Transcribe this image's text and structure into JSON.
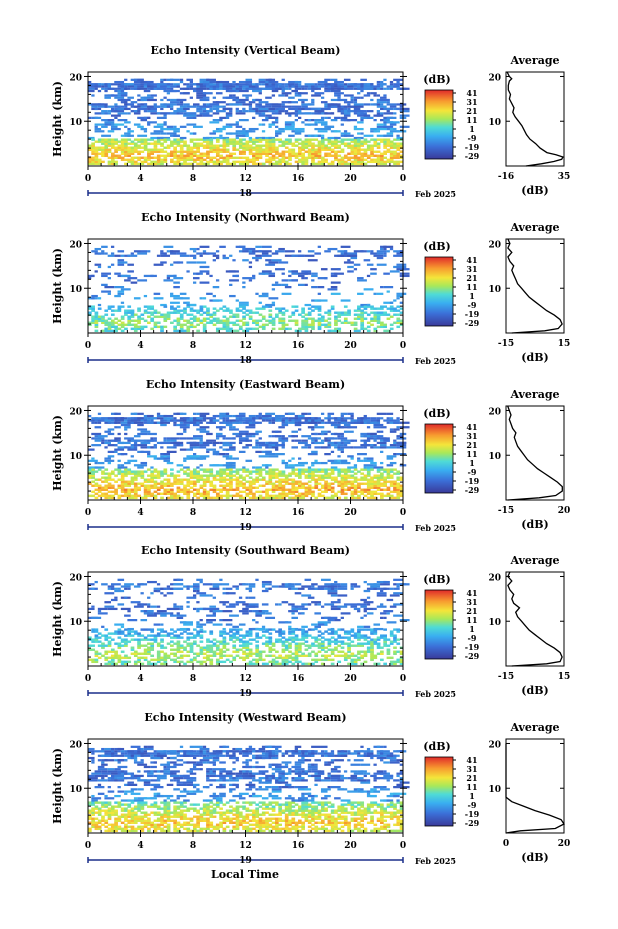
{
  "chart_data": {
    "type": "heatmap",
    "panels": [
      {
        "title": "Echo Intensity (Vertical Beam)",
        "ylabel": "Height (km)",
        "yticks": [
          "20",
          "10"
        ],
        "xticks": [
          "0",
          "4",
          "8",
          "12",
          "16",
          "20",
          "0"
        ],
        "day": "18",
        "month": "Feb 2025",
        "colorbar_title": "(dB)",
        "colorbar_ticks": [
          "41",
          "31",
          "21",
          "11",
          "1",
          "-9",
          "-19",
          "-29"
        ],
        "avg_title": "Average",
        "avg_yticks": [
          "20",
          "10"
        ],
        "avg_xticks": [
          "-16",
          "35"
        ],
        "avg_xlabel": "(dB)",
        "low_intensity": 25,
        "low_top_km": 6,
        "density": 0.65,
        "avg_profile": {
          "x": [
            1.5,
            15,
            26,
            33,
            34,
            28,
            20,
            14,
            10,
            5,
            2,
            0,
            -2,
            -5,
            -8,
            -10,
            -9,
            -11,
            -13,
            -12,
            -14,
            -14,
            -13,
            -11,
            -13,
            -15
          ],
          "y": [
            0,
            0.5,
            1,
            1.5,
            2,
            2.5,
            3,
            4,
            5,
            6,
            7,
            8,
            9,
            10,
            11,
            12,
            13,
            14,
            15,
            16,
            17,
            18,
            19,
            19.5,
            20,
            21
          ]
        }
      },
      {
        "title": "Echo Intensity (Northward Beam)",
        "ylabel": "Height (km)",
        "yticks": [
          "20",
          "10"
        ],
        "xticks": [
          "0",
          "4",
          "8",
          "12",
          "16",
          "20",
          "0"
        ],
        "day": "18",
        "month": "Feb 2025",
        "colorbar_title": "(dB)",
        "colorbar_ticks": [
          "41",
          "31",
          "21",
          "11",
          "1",
          "-9",
          "-19",
          "-29"
        ],
        "avg_title": "Average",
        "avg_yticks": [
          "20",
          "10"
        ],
        "avg_xticks": [
          "-15",
          "15"
        ],
        "avg_xlabel": "(dB)",
        "low_intensity": 10,
        "low_top_km": 6,
        "density": 0.25,
        "avg_profile": {
          "x": [
            -12,
            5,
            12,
            14,
            13,
            10,
            6,
            3,
            0,
            -3,
            -5,
            -7,
            -9,
            -10,
            -11,
            -12,
            -11,
            -13,
            -14,
            -12,
            -14,
            -13,
            -14
          ],
          "y": [
            0,
            0.5,
            1,
            2,
            3,
            4,
            5,
            6,
            7,
            8,
            9,
            10,
            11,
            12,
            13,
            14,
            15,
            16,
            17,
            18,
            19,
            20,
            21
          ]
        }
      },
      {
        "title": "Echo Intensity (Eastward Beam)",
        "ylabel": "Height (km)",
        "yticks": [
          "20",
          "10"
        ],
        "xticks": [
          "0",
          "4",
          "8",
          "12",
          "16",
          "20",
          "0"
        ],
        "day": "19",
        "month": "Feb 2025",
        "colorbar_title": "(dB)",
        "colorbar_ticks": [
          "41",
          "31",
          "21",
          "11",
          "1",
          "-9",
          "-19",
          "-29"
        ],
        "avg_title": "Average",
        "avg_yticks": [
          "20",
          "10"
        ],
        "avg_xticks": [
          "-15",
          "20"
        ],
        "avg_xlabel": "(dB)",
        "low_intensity": 27,
        "low_top_km": 7,
        "density": 0.55,
        "avg_profile": {
          "x": [
            -14,
            5,
            15,
            19,
            19,
            16,
            12,
            8,
            4,
            1,
            -2,
            -4,
            -6,
            -8,
            -9,
            -10,
            -9,
            -11,
            -12,
            -13,
            -12,
            -13,
            -14
          ],
          "y": [
            0,
            0.5,
            1,
            2,
            3,
            4,
            5,
            6,
            7,
            8,
            9,
            10,
            11,
            12,
            13,
            14,
            15,
            16,
            17,
            18,
            19,
            20,
            21
          ]
        }
      },
      {
        "title": "Echo Intensity (Southward Beam)",
        "ylabel": "Height (km)",
        "yticks": [
          "20",
          "10"
        ],
        "xticks": [
          "0",
          "4",
          "8",
          "12",
          "16",
          "20",
          "0"
        ],
        "day": "19",
        "month": "Feb 2025",
        "colorbar_title": "(dB)",
        "colorbar_ticks": [
          "41",
          "31",
          "21",
          "11",
          "1",
          "-9",
          "-19",
          "-29"
        ],
        "avg_title": "Average",
        "avg_yticks": [
          "20",
          "10"
        ],
        "avg_xticks": [
          "-15",
          "15"
        ],
        "avg_xlabel": "(dB)",
        "low_intensity": 14,
        "low_top_km": 8,
        "density": 0.3,
        "avg_profile": {
          "x": [
            -12,
            6,
            13,
            14,
            13,
            10,
            6,
            3,
            0,
            -3,
            -5,
            -7,
            -9,
            -10,
            -8,
            -11,
            -12,
            -11,
            -13,
            -14,
            -12,
            -14,
            -13
          ],
          "y": [
            0,
            0.5,
            1,
            2,
            3,
            4,
            5,
            6,
            7,
            8,
            9,
            10,
            11,
            12,
            13,
            14,
            15,
            16,
            17,
            18,
            19,
            20,
            21
          ]
        }
      },
      {
        "title": "Echo Intensity (Westward Beam)",
        "ylabel": "Height (km)",
        "yticks": [
          "20",
          "10"
        ],
        "xticks": [
          "0",
          "4",
          "8",
          "12",
          "16",
          "20",
          "0"
        ],
        "day": "19",
        "month": "Feb 2025",
        "colorbar_title": "(dB)",
        "colorbar_ticks": [
          "41",
          "31",
          "21",
          "11",
          "1",
          "-9",
          "-19",
          "-29"
        ],
        "avg_title": "Average",
        "avg_yticks": [
          "20",
          "10"
        ],
        "avg_xticks": [
          "0",
          "20"
        ],
        "avg_xlabel": "(dB)",
        "low_intensity": 24,
        "low_top_km": 7,
        "density": 0.55,
        "avg_profile": {
          "x": [
            -20,
            5,
            17,
            20,
            19,
            15,
            10,
            6,
            2,
            -2,
            -5,
            -8,
            -10,
            -12,
            -13,
            -12,
            -14,
            -15,
            -14,
            -16,
            -15,
            -16
          ],
          "y": [
            0,
            0.5,
            1,
            2,
            3,
            4,
            5,
            6,
            7,
            8,
            9,
            10,
            11,
            12,
            13,
            14,
            15,
            16,
            17,
            18,
            19,
            20
          ]
        }
      }
    ],
    "xlabel": "Local Time"
  }
}
